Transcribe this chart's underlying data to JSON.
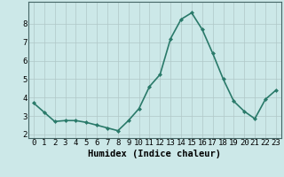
{
  "x": [
    0,
    1,
    2,
    3,
    4,
    5,
    6,
    7,
    8,
    9,
    10,
    11,
    12,
    13,
    14,
    15,
    16,
    17,
    18,
    19,
    20,
    21,
    22,
    23
  ],
  "y": [
    3.7,
    3.2,
    2.7,
    2.75,
    2.75,
    2.65,
    2.5,
    2.35,
    2.2,
    2.75,
    3.4,
    4.6,
    5.25,
    7.2,
    8.25,
    8.6,
    7.7,
    6.4,
    5.0,
    3.8,
    3.25,
    2.85,
    3.9,
    4.4
  ],
  "line_color": "#2a7a6a",
  "marker": "D",
  "marker_size": 2,
  "bg_color": "#cce8e8",
  "grid_color": "#b0c8c8",
  "xlabel": "Humidex (Indice chaleur)",
  "xlabel_fontsize": 7.5,
  "ylabel": "",
  "xlim": [
    -0.5,
    23.5
  ],
  "ylim": [
    1.8,
    9.2
  ],
  "yticks": [
    2,
    3,
    4,
    5,
    6,
    7,
    8
  ],
  "xticks": [
    0,
    1,
    2,
    3,
    4,
    5,
    6,
    7,
    8,
    9,
    10,
    11,
    12,
    13,
    14,
    15,
    16,
    17,
    18,
    19,
    20,
    21,
    22,
    23
  ],
  "tick_fontsize": 6.5,
  "line_width": 1.2
}
